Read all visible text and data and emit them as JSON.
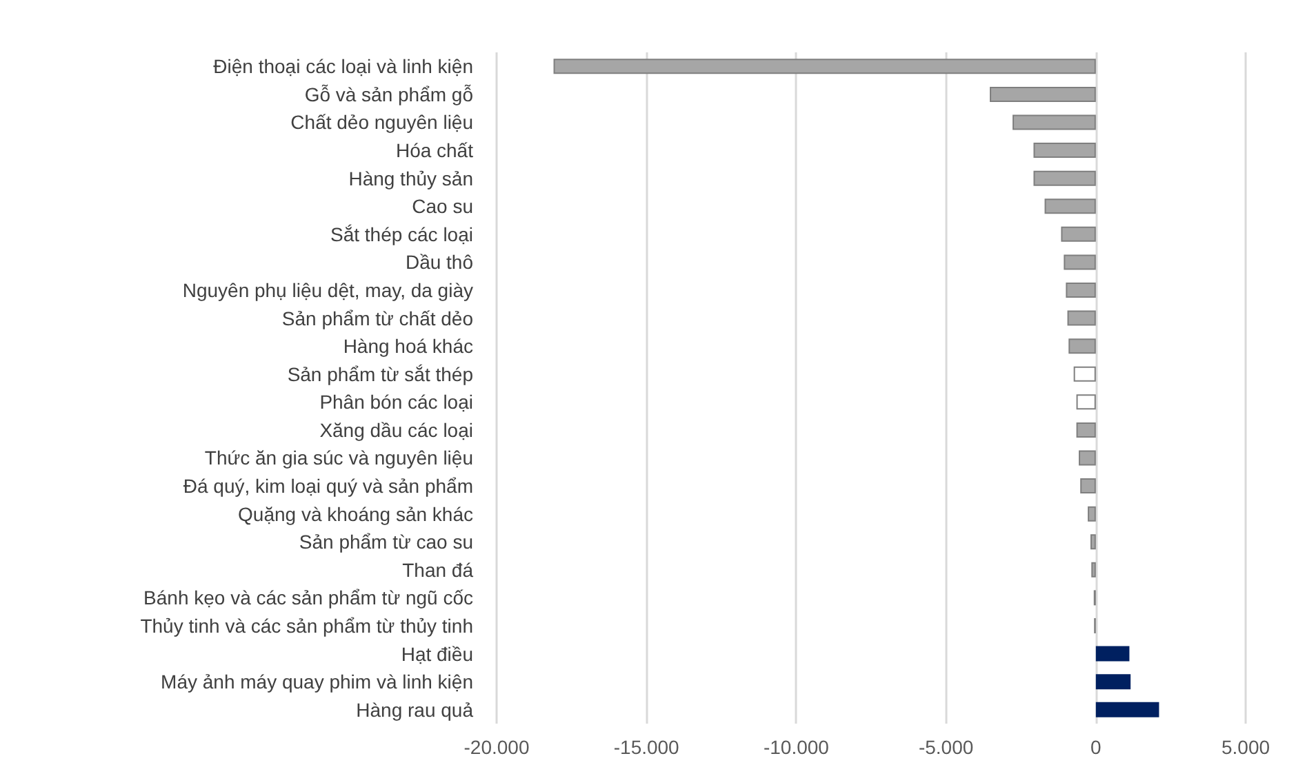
{
  "chart_data": {
    "type": "bar",
    "orientation": "horizontal",
    "categories": [
      "Điện thoại các loại và linh kiện",
      "Gỗ và sản phẩm gỗ",
      "Chất dẻo nguyên liệu",
      "Hóa chất",
      "Hàng thủy sản",
      "Cao su",
      "Sắt thép các loại",
      "Dầu thô",
      "Nguyên phụ liệu dệt, may, da giày",
      "Sản phẩm từ chất dẻo",
      "Hàng hoá khác",
      "Sản phẩm từ sắt thép",
      "Phân bón các loại",
      "Xăng dầu các loại",
      "Thức ăn gia súc và nguyên liệu",
      "Đá quý, kim loại quý và sản phẩm",
      "Quặng và khoáng sản khác",
      "Sản phẩm từ cao su",
      "Than đá",
      "Bánh kẹo và các sản phẩm từ ngũ cốc",
      "Thủy tinh và các sản phẩm từ thủy tinh",
      "Hạt điều",
      "Máy ảnh máy quay phim và linh kiện",
      "Hàng rau quả"
    ],
    "values": [
      -18100,
      -3540,
      -2780,
      -2080,
      -2080,
      -1710,
      -1160,
      -1070,
      -1000,
      -950,
      -910,
      -740,
      -650,
      -650,
      -570,
      -520,
      -270,
      -180,
      -150,
      -70,
      -60,
      1120,
      1160,
      2110
    ],
    "colors": [
      "#a6a6a6",
      "#a6a6a6",
      "#a6a6a6",
      "#a6a6a6",
      "#a6a6a6",
      "#a6a6a6",
      "#a6a6a6",
      "#a6a6a6",
      "#a6a6a6",
      "#a6a6a6",
      "#a6a6a6",
      "#ffffff",
      "#ffffff",
      "#a6a6a6",
      "#a6a6a6",
      "#a6a6a6",
      "#a6a6a6",
      "#a6a6a6",
      "#a6a6a6",
      "#a6a6a6",
      "#a6a6a6",
      "#002060",
      "#002060",
      "#002060"
    ],
    "xlim": [
      -20000,
      5000
    ],
    "xticks": [
      {
        "value": -20000,
        "label": "-20.000"
      },
      {
        "value": -15000,
        "label": "-15.000"
      },
      {
        "value": -10000,
        "label": "-10.000"
      },
      {
        "value": -5000,
        "label": "-5.000"
      },
      0,
      {
        "value": 5000,
        "label": "5.000"
      }
    ],
    "grid": "x"
  }
}
